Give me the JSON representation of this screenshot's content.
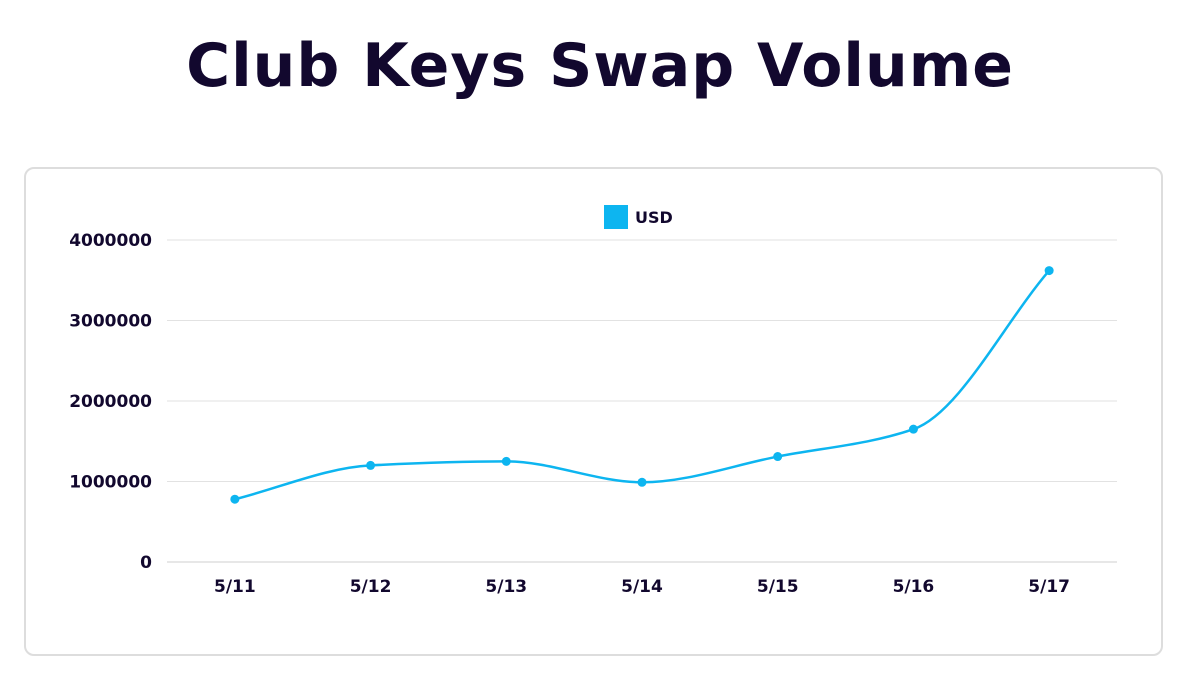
{
  "title": "Club Keys Swap Volume",
  "colors": {
    "series": "#0db5f0",
    "title": "#12082e",
    "grid": "#e2e2e2",
    "card_border": "#dddddd"
  },
  "chart_data": {
    "type": "line",
    "title": "Club Keys Swap Volume",
    "xlabel": "",
    "ylabel": "",
    "categories": [
      "5/11",
      "5/12",
      "5/13",
      "5/14",
      "5/15",
      "5/16",
      "5/17"
    ],
    "series": [
      {
        "name": "USD",
        "values": [
          780000,
          1200000,
          1250000,
          990000,
          1310000,
          1650000,
          3620000
        ]
      }
    ],
    "ylim": [
      0,
      4000000
    ],
    "yticks": [
      0,
      1000000,
      2000000,
      3000000,
      4000000
    ],
    "ytick_labels": [
      "0",
      "1000000",
      "2000000",
      "3000000",
      "4000000"
    ],
    "grid": true,
    "legend_position": "top-center",
    "smooth": true
  }
}
